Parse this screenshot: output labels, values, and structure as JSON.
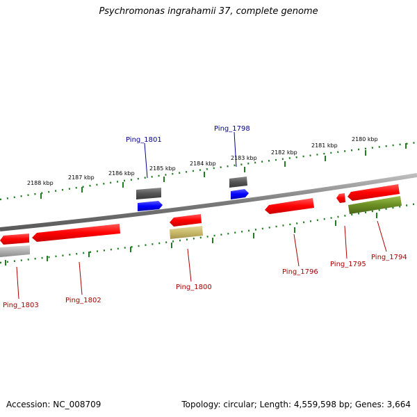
{
  "title": "Psychromonas ingrahamii 37, complete genome",
  "footer": {
    "accession": "Accession: NC_008709",
    "summary": "Topology: circular; Length: 4,559,598 bp; Genes: 3,664"
  },
  "scale": {
    "unit": "kbp",
    "ticks": [
      "2188 kbp",
      "2187 kbp",
      "2186 kbp",
      "2185 kbp",
      "2184 kbp",
      "2183 kbp",
      "2182 kbp",
      "2181 kbp",
      "2180 kbp"
    ]
  },
  "colors": {
    "backbone": "#7a7a7a",
    "tick": "#1e7d1e",
    "gene_red": "#ee0000",
    "gene_blue": "#0000ee",
    "gene_darkgray": "#555555",
    "gene_lightgray": "#b0b0b0",
    "gene_olive": "#6b8e23",
    "gene_khaki": "#c8b96a",
    "label_blue": "#00008b",
    "label_red": "#aa0000"
  },
  "genes": [
    {
      "label": "Ping_1801",
      "strand": "top"
    },
    {
      "label": "Ping_1798",
      "strand": "top"
    },
    {
      "label": "Ping_1803",
      "strand": "bottom"
    },
    {
      "label": "Ping_1802",
      "strand": "bottom"
    },
    {
      "label": "Ping_1800",
      "strand": "bottom"
    },
    {
      "label": "Ping_1796",
      "strand": "bottom"
    },
    {
      "label": "Ping_1795",
      "strand": "bottom"
    },
    {
      "label": "Ping_1794",
      "strand": "bottom"
    }
  ]
}
